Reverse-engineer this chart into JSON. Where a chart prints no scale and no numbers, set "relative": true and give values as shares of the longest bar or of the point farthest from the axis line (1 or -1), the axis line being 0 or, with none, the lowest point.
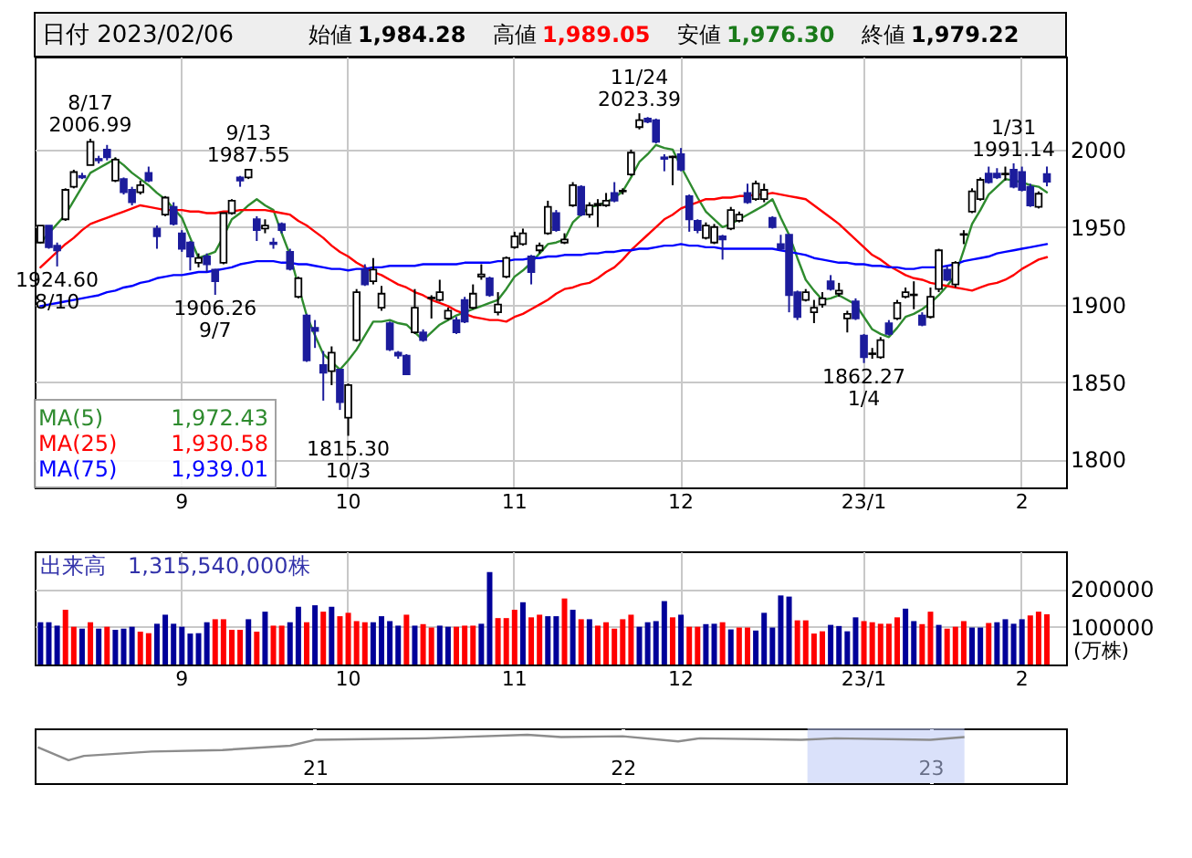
{
  "chart_data": [
    {
      "type": "candlestick",
      "title": "日付 2023/02/06",
      "categories": [
        null,
        null,
        null,
        null,
        null,
        null,
        null,
        null,
        null,
        null,
        null,
        null,
        null,
        null,
        null,
        null,
        null,
        "9",
        null,
        null,
        null,
        null,
        null,
        null,
        null,
        null,
        null,
        null,
        null,
        null,
        null,
        null,
        null,
        null,
        null,
        null,
        null,
        "10",
        null,
        null,
        null,
        null,
        null,
        null,
        null,
        null,
        null,
        null,
        null,
        null,
        null,
        null,
        null,
        null,
        null,
        null,
        null,
        "11",
        null,
        null,
        null,
        null,
        null,
        null,
        null,
        null,
        null,
        null,
        null,
        null,
        null,
        null,
        null,
        null,
        null,
        null,
        null,
        "12",
        null,
        null,
        null,
        null,
        null,
        null,
        null,
        null,
        null,
        null,
        null,
        null,
        null,
        null,
        null,
        null,
        null,
        null,
        null,
        null,
        null,
        "23/1",
        null,
        null,
        null,
        null,
        null,
        null,
        null,
        null,
        null,
        null,
        null,
        null,
        null,
        null,
        null,
        null,
        null,
        null,
        "2",
        null,
        null,
        null
      ],
      "ohlc": [
        [
          1940,
          1951,
          1940,
          1951
        ],
        [
          1951,
          1951,
          1936,
          1937
        ],
        [
          1938,
          1940,
          1924.6,
          1935
        ],
        [
          1955,
          1975,
          1954,
          1974
        ],
        [
          1976,
          1987,
          1975,
          1985.5
        ],
        [
          1983,
          1985,
          1981,
          1982
        ],
        [
          1990,
          2006.99,
          1990,
          2005
        ],
        [
          1994,
          1996,
          1991,
          1993
        ],
        [
          2000,
          2003,
          1993,
          1995
        ],
        [
          1980,
          1995,
          1979,
          1993.5
        ],
        [
          1981,
          1982,
          1971,
          1972.5
        ],
        [
          1974,
          1976,
          1964,
          1966
        ],
        [
          1972.5,
          1980,
          1971,
          1977
        ],
        [
          1985,
          1989,
          1979,
          1980
        ],
        [
          1949,
          1951,
          1936,
          1944
        ],
        [
          1958,
          1970,
          1957,
          1969
        ],
        [
          1963,
          1966,
          1951,
          1952
        ],
        [
          1946,
          1948,
          1934,
          1936
        ],
        [
          1940,
          1941,
          1922,
          1931
        ],
        [
          1927,
          1933,
          1924,
          1930
        ],
        [
          1931,
          1933,
          1921,
          1926
        ],
        [
          1922.5,
          1923,
          1906.26,
          1915
        ],
        [
          1927,
          1959,
          1926,
          1959
        ],
        [
          1959,
          1968,
          1958,
          1967
        ],
        [
          1982,
          1983,
          1976,
          1980
        ],
        [
          1982,
          1987.55,
          1981,
          1987
        ],
        [
          1955,
          1957,
          1941,
          1948
        ],
        [
          1949,
          1955,
          1946,
          1951
        ],
        [
          1940,
          1943,
          1936,
          1939
        ],
        [
          1952,
          1953,
          1946,
          1948
        ],
        [
          1934,
          1936,
          1922,
          1923
        ],
        [
          1905,
          1918,
          1904,
          1917
        ],
        [
          1893,
          1894,
          1863,
          1864
        ],
        [
          1885,
          1890,
          1872,
          1883
        ],
        [
          1861,
          1870,
          1838,
          1856
        ],
        [
          1857,
          1873,
          1848,
          1869
        ],
        [
          1858,
          1858,
          1832,
          1837
        ],
        [
          1827,
          1849,
          1815.3,
          1848
        ],
        [
          1877,
          1910,
          1876,
          1908
        ],
        [
          1922.5,
          1926,
          1912,
          1913
        ],
        [
          1915,
          1930,
          1913,
          1922.5
        ],
        [
          1898,
          1912,
          1896,
          1907
        ],
        [
          1888,
          1889,
          1870,
          1871
        ],
        [
          1869,
          1870,
          1865,
          1867
        ],
        [
          1867,
          1868,
          1855,
          1855
        ],
        [
          1882,
          1910,
          1881,
          1898
        ],
        [
          1882,
          1884,
          1876,
          1877
        ],
        [
          1904,
          1906,
          1891,
          1904.5
        ],
        [
          1903,
          1916,
          1902,
          1908
        ],
        [
          1891,
          1898,
          1890,
          1896
        ],
        [
          1890,
          1892,
          1881,
          1882
        ],
        [
          1903,
          1905,
          1888,
          1889
        ],
        [
          1898,
          1913,
          1897,
          1907
        ],
        [
          1918,
          1926,
          1916,
          1919.5
        ],
        [
          1917,
          1918,
          1905,
          1906
        ],
        [
          1895,
          1908,
          1893,
          1900
        ],
        [
          1918,
          1931,
          1917,
          1930
        ],
        [
          1937,
          1947,
          1936,
          1944
        ],
        [
          1939,
          1949,
          1938,
          1946
        ],
        [
          1931,
          1932,
          1913,
          1921
        ],
        [
          1935,
          1940,
          1933,
          1938
        ],
        [
          1946,
          1967,
          1945,
          1963
        ],
        [
          1959,
          1961,
          1947,
          1948
        ],
        [
          1940,
          1946,
          1939,
          1942
        ],
        [
          1964,
          1979,
          1963,
          1977
        ],
        [
          1976,
          1977,
          1957,
          1958
        ],
        [
          1958,
          1966,
          1956,
          1964
        ],
        [
          1964,
          1968,
          1950,
          1965
        ],
        [
          1964,
          1972,
          1963,
          1967
        ],
        [
          1972,
          1979,
          1966,
          1967
        ],
        [
          1973,
          1975,
          1971,
          1973.5
        ],
        [
          1984,
          2000,
          1983,
          1998
        ],
        [
          2014.5,
          2023.39,
          2013,
          2019
        ],
        [
          2020,
          2021,
          2017,
          2018
        ],
        [
          2019,
          2020,
          2004,
          2005
        ],
        [
          1995,
          1997,
          1986,
          1994
        ],
        [
          1995,
          1996,
          1977,
          1995.5
        ],
        [
          1997,
          2001,
          1986,
          1987
        ],
        [
          1970,
          1971,
          1947,
          1955
        ],
        [
          1954,
          1955,
          1946,
          1948
        ],
        [
          1943,
          1953,
          1942,
          1951
        ],
        [
          1940,
          1952,
          1939,
          1950
        ],
        [
          1944,
          1945,
          1929,
          1942
        ],
        [
          1949,
          1963,
          1948,
          1961
        ],
        [
          1954,
          1960,
          1953,
          1958
        ],
        [
          1972,
          1978,
          1965,
          1966
        ],
        [
          1968,
          1980,
          1967,
          1978
        ],
        [
          1968,
          1978,
          1966,
          1974
        ],
        [
          1956,
          1957,
          1949,
          1950
        ],
        [
          1939,
          1945,
          1935,
          1936
        ],
        [
          1945,
          1945,
          1895,
          1906
        ],
        [
          1908,
          1909,
          1890,
          1892
        ],
        [
          1903,
          1910,
          1902,
          1908
        ],
        [
          1895,
          1903,
          1888,
          1898
        ],
        [
          1900,
          1908,
          1898,
          1904
        ],
        [
          1915,
          1919,
          1909,
          1910
        ],
        [
          1907,
          1914,
          1905,
          1909
        ],
        [
          1891,
          1896,
          1882,
          1894
        ],
        [
          1902,
          1904,
          1890,
          1891
        ],
        [
          1880,
          1881,
          1862.27,
          1866
        ],
        [
          1868,
          1872,
          1865,
          1868.5
        ],
        [
          1866,
          1879,
          1865,
          1877
        ],
        [
          1888,
          1890,
          1880,
          1881
        ],
        [
          1891,
          1903,
          1890,
          1901
        ],
        [
          1905,
          1911,
          1904,
          1908
        ],
        [
          1906,
          1915,
          1897,
          1906.5
        ],
        [
          1893,
          1895,
          1886,
          1887
        ],
        [
          1892,
          1911,
          1891,
          1905
        ],
        [
          1910,
          1936,
          1908,
          1935
        ],
        [
          1922.5,
          1925,
          1915,
          1916
        ],
        [
          1913,
          1928,
          1911,
          1927
        ],
        [
          1945,
          1948,
          1939,
          1945.5
        ],
        [
          1960,
          1975,
          1959,
          1973
        ],
        [
          1968,
          1982,
          1967,
          1980.5
        ],
        [
          1984.5,
          1989,
          1978,
          1979
        ],
        [
          1984.5,
          1988,
          1981,
          1982
        ],
        [
          1984,
          1989,
          1980,
          1984.5
        ],
        [
          1987,
          1991.14,
          1975,
          1976
        ],
        [
          1985.5,
          1989,
          1973,
          1974
        ],
        [
          1976,
          1978,
          1963,
          1964
        ],
        [
          1963,
          1973,
          1962,
          1971.5
        ],
        [
          1984.28,
          1989.05,
          1976.3,
          1979.22
        ]
      ],
      "series": [
        {
          "name": "MA(5)",
          "type": "line",
          "color": "#2e8b2e",
          "values": [
            1940,
            1946,
            1952,
            1958,
            1967,
            1976,
            1985,
            1988,
            1991,
            1994,
            1990,
            1985,
            1981,
            1977,
            1972,
            1968,
            1962,
            1956,
            1943,
            1930,
            1932,
            1934,
            1944,
            1955,
            1959,
            1964,
            1968,
            1964,
            1961,
            1946,
            1932,
            1912,
            1893,
            1880,
            1868,
            1863,
            1858,
            1864,
            1871,
            1880,
            1889,
            1889,
            1890,
            1888,
            1887,
            1882,
            1877,
            1882,
            1887,
            1890,
            1893,
            1895,
            1897,
            1899,
            1901,
            1903,
            1910,
            1918,
            1922,
            1927,
            1933,
            1939,
            1940,
            1942,
            1953,
            1958,
            1963,
            1964,
            1966,
            1969,
            1973,
            1982,
            1992,
            1997,
            2003,
            2001,
            2000,
            1989,
            1979,
            1969,
            1960,
            1955,
            1950,
            1952,
            1955,
            1958,
            1961,
            1964,
            1968,
            1956,
            1945,
            1930,
            1916,
            1909,
            1903,
            1904,
            1906,
            1903,
            1900,
            1892,
            1884,
            1881,
            1879,
            1885,
            1892,
            1894,
            1897,
            1901,
            1906,
            1912,
            1919,
            1935,
            1952,
            1961,
            1971,
            1976,
            1981,
            1980,
            1979,
            1977,
            1976,
            1972.43
          ]
        },
        {
          "name": "MA(25)",
          "type": "line",
          "color": "#ff0000",
          "values": [
            1924,
            1929,
            1934,
            1939,
            1943,
            1948,
            1952,
            1954,
            1956,
            1958,
            1960,
            1962,
            1964,
            1963,
            1962,
            1961,
            1961,
            1961,
            1960,
            1960,
            1959,
            1959,
            1960,
            1960,
            1961,
            1961,
            1961,
            1961,
            1960,
            1959,
            1958,
            1954,
            1951,
            1947,
            1943,
            1938,
            1934,
            1931,
            1927,
            1924,
            1921,
            1919,
            1916,
            1913,
            1911,
            1908,
            1906,
            1903,
            1901,
            1899,
            1896,
            1894,
            1892,
            1891,
            1890,
            1890,
            1889,
            1892,
            1894,
            1897,
            1900,
            1903,
            1907,
            1910,
            1911,
            1913,
            1914,
            1917,
            1921,
            1924,
            1929,
            1935,
            1940,
            1945,
            1950,
            1955,
            1958,
            1962,
            1964,
            1966,
            1968,
            1968,
            1969,
            1969,
            1970,
            1970,
            1971,
            1971,
            1972,
            1971,
            1970,
            1969,
            1968,
            1964,
            1960,
            1956,
            1952,
            1947,
            1942,
            1937,
            1932,
            1929,
            1925,
            1922,
            1919,
            1917,
            1916,
            1914,
            1913,
            1912,
            1911,
            1910,
            1909,
            1911,
            1913,
            1914,
            1916,
            1919,
            1923,
            1926,
            1929,
            1930.58
          ]
        },
        {
          "name": "MA(75)",
          "type": "line",
          "color": "#0000ff",
          "values": [
            1899,
            1900,
            1901,
            1902,
            1903,
            1904,
            1905,
            1906,
            1908,
            1909,
            1911,
            1912,
            1914,
            1915,
            1917,
            1918,
            1919,
            1919,
            1920,
            1921,
            1921,
            1922,
            1923,
            1924,
            1926,
            1927,
            1928,
            1928,
            1928,
            1927,
            1927,
            1926,
            1926,
            1925,
            1924,
            1923,
            1923,
            1922,
            1923,
            1923,
            1924,
            1924,
            1925,
            1925,
            1925,
            1925,
            1926,
            1926,
            1926,
            1926,
            1926,
            1927,
            1927,
            1927,
            1927,
            1928,
            1928,
            1929,
            1929,
            1930,
            1930,
            1931,
            1931,
            1932,
            1932,
            1932,
            1933,
            1933,
            1934,
            1934,
            1935,
            1935,
            1936,
            1936,
            1937,
            1938,
            1938,
            1939,
            1938,
            1938,
            1937,
            1937,
            1936,
            1936,
            1936,
            1936,
            1936,
            1936,
            1936,
            1935,
            1934,
            1933,
            1932,
            1930,
            1929,
            1928,
            1927,
            1927,
            1926,
            1926,
            1925,
            1925,
            1924,
            1924,
            1923,
            1923,
            1924,
            1924,
            1924,
            1925,
            1926,
            1928,
            1929,
            1930,
            1931,
            1933,
            1934,
            1935,
            1936,
            1937,
            1938,
            1939.01
          ]
        }
      ],
      "annotations": [
        "始値 1,984.28",
        "高値 1,989.05",
        "安値 1,976.30",
        "終値 1,979.22",
        "1,972.43",
        "1,930.58",
        "1,939.01",
        {
          "text": "8/17\n2006.99",
          "y": 2006.99
        },
        {
          "text": "1924.60\n8/10",
          "y": 1924.6
        },
        {
          "text": "1906.26\n9/7",
          "y": 1906.26
        },
        {
          "text": "9/13\n1987.55",
          "y": 1987.55
        },
        {
          "text": "1815.30\n10/3",
          "y": 1815.3
        },
        {
          "text": "11/24\n2023.39",
          "y": 2023.39
        },
        {
          "text": "1862.27\n1/4",
          "y": 1862.27
        },
        {
          "text": "1/31\n1991.14",
          "y": 1991.14
        }
      ],
      "ylim": [
        1782,
        2060
      ],
      "yticks": [
        1800,
        1850,
        1900,
        1950,
        2000
      ],
      "grid": true,
      "legend": "bottom left"
    },
    {
      "type": "bar",
      "ylabel": "(万株)",
      "annotations": [
        "出来高　1,315,540,000株"
      ],
      "categories": [
        null,
        null,
        null,
        null,
        null,
        null,
        null,
        null,
        null,
        null,
        null,
        null,
        null,
        null,
        null,
        null,
        null,
        "9",
        null,
        null,
        null,
        null,
        null,
        null,
        null,
        null,
        null,
        null,
        null,
        null,
        null,
        null,
        null,
        null,
        null,
        null,
        null,
        "10",
        null,
        null,
        null,
        null,
        null,
        null,
        null,
        null,
        null,
        null,
        null,
        null,
        null,
        null,
        null,
        null,
        null,
        null,
        null,
        "11",
        null,
        null,
        null,
        null,
        null,
        null,
        null,
        null,
        null,
        null,
        null,
        null,
        null,
        null,
        null,
        null,
        null,
        null,
        null,
        "12",
        null,
        null,
        null,
        null,
        null,
        null,
        null,
        null,
        null,
        null,
        null,
        null,
        null,
        null,
        null,
        null,
        null,
        null,
        null,
        null,
        null,
        "23/1",
        null,
        null,
        null,
        null,
        null,
        null,
        null,
        null,
        null,
        null,
        null,
        null,
        null,
        null,
        null,
        null,
        null,
        null,
        "2",
        null,
        null,
        null
      ],
      "values": [
        112000,
        112000,
        103000,
        145000,
        100000,
        95000,
        112000,
        95000,
        100000,
        92000,
        95000,
        100000,
        87000,
        83000,
        108000,
        132000,
        108000,
        100000,
        82000,
        83000,
        112000,
        120000,
        120000,
        92000,
        92000,
        120000,
        87000,
        140000,
        103000,
        103000,
        112000,
        153000,
        112000,
        157000,
        140000,
        153000,
        128000,
        137000,
        115000,
        112000,
        112000,
        128000,
        115000,
        103000,
        132000,
        103000,
        107000,
        98000,
        103000,
        100000,
        100000,
        103000,
        103000,
        108000,
        245000,
        123000,
        123000,
        145000,
        165000,
        125000,
        132000,
        128000,
        128000,
        175000,
        145000,
        120000,
        120000,
        103000,
        112000,
        95000,
        120000,
        132000,
        100000,
        112000,
        115000,
        168000,
        125000,
        132000,
        100000,
        100000,
        107000,
        108000,
        112000,
        93000,
        98000,
        98000,
        90000,
        137000,
        98000,
        183000,
        180000,
        117000,
        117000,
        82000,
        88000,
        105000,
        102000,
        88000,
        125000,
        115000,
        112000,
        108000,
        108000,
        125000,
        148000,
        115000,
        107000,
        140000,
        105000,
        95000,
        100000,
        115000,
        98000,
        98000,
        110000,
        112000,
        120000,
        108000,
        120000,
        130000,
        140000,
        133000
      ],
      "colors": [
        "#000099",
        "#000099",
        "#000099",
        "#ff0000",
        "#ff0000",
        "#000099",
        "#ff0000",
        "#000099",
        "#ff0000",
        "#000099",
        "#000099",
        "#000099",
        "#ff0000",
        "#ff0000",
        "#000099",
        "#000099",
        "#000099",
        "#000099",
        "#000099",
        "#000099",
        "#000099",
        "#ff0000",
        "#ff0000",
        "#ff0000",
        "#ff0000",
        "#000099",
        "#ff0000",
        "#000099",
        "#ff0000",
        "#ff0000",
        "#000099",
        "#000099",
        "#ff0000",
        "#000099",
        "#ff0000",
        "#000099",
        "#ff0000",
        "#ff0000",
        "#ff0000",
        "#ff0000",
        "#000099",
        "#000099",
        "#000099",
        "#000099",
        "#ff0000",
        "#000099",
        "#ff0000",
        "#ff0000",
        "#000099",
        "#000099",
        "#ff0000",
        "#ff0000",
        "#ff0000",
        "#000099",
        "#000099",
        "#ff0000",
        "#ff0000",
        "#ff0000",
        "#000099",
        "#ff0000",
        "#ff0000",
        "#000099",
        "#000099",
        "#ff0000",
        "#000099",
        "#ff0000",
        "#000099",
        "#ff0000",
        "#ff0000",
        "#ff0000",
        "#ff0000",
        "#ff0000",
        "#000099",
        "#000099",
        "#000099",
        "#000099",
        "#ff0000",
        "#000099",
        "#ff0000",
        "#ff0000",
        "#000099",
        "#000099",
        "#ff0000",
        "#000099",
        "#ff0000",
        "#ff0000",
        "#000099",
        "#000099",
        "#000099",
        "#000099",
        "#000099",
        "#ff0000",
        "#ff0000",
        "#ff0000",
        "#ff0000",
        "#000099",
        "#000099",
        "#000099",
        "#000099",
        "#ff0000",
        "#ff0000",
        "#ff0000",
        "#ff0000",
        "#ff0000",
        "#000099",
        "#000099",
        "#ff0000",
        "#ff0000",
        "#000099",
        "#ff0000",
        "#ff0000",
        "#ff0000",
        "#000099",
        "#000099",
        "#ff0000",
        "#000099",
        "#000099",
        "#000099",
        "#000099",
        "#ff0000",
        "#ff0000",
        "#ff0000"
      ],
      "ylim": [
        0,
        300000
      ],
      "yticks": [
        100000,
        200000
      ],
      "grid": true
    },
    {
      "type": "line",
      "relative": true,
      "series": [
        {
          "color": "#8c8c8c",
          "x": [
            2020.1,
            2020.2,
            2020.25,
            2020.47,
            2020.7,
            2020.92,
            2021.0,
            2021.36,
            2021.69,
            2021.8,
            2022.0,
            2022.18,
            2022.25,
            2022.58,
            2022.69,
            2023.0,
            2023.11
          ],
          "values": [
            0.51,
            0,
            0.17,
            0.34,
            0.4,
            0.57,
            0.8,
            0.86,
            1,
            0.91,
            0.94,
            0.74,
            0.86,
            0.8,
            0.86,
            0.8,
            0.91
          ]
        }
      ],
      "xlim": [
        2020.09,
        2023.44
      ],
      "xticks": [
        {
          "value": 2021,
          "label": "21"
        },
        {
          "value": 2022,
          "label": "22"
        },
        {
          "value": 2023,
          "label": "23"
        }
      ],
      "bands": [
        {
          "axis": "x",
          "from": 2022.6,
          "to": 2023.11,
          "color": "#bcc8f5"
        }
      ],
      "grid": "x",
      "tick_labels": "x"
    }
  ]
}
